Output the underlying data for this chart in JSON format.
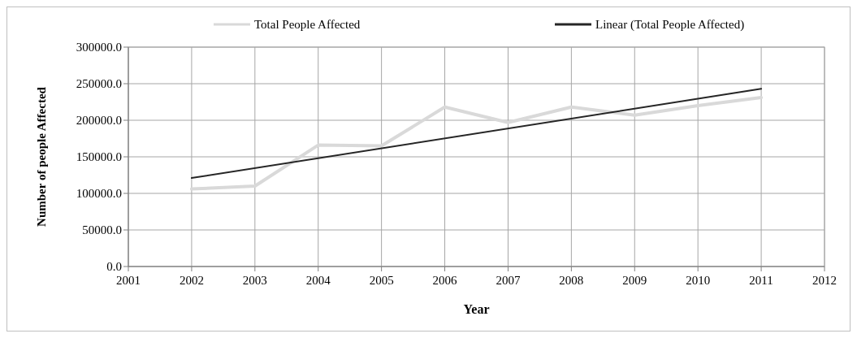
{
  "chart_data": {
    "type": "line",
    "xlabel": "Year",
    "ylabel": "Number of people Affected",
    "x": [
      2002,
      2003,
      2004,
      2005,
      2006,
      2007,
      2008,
      2009,
      2010,
      2011
    ],
    "series": [
      {
        "name": "Total People Affected",
        "color": "#d9d9d9",
        "values": [
          106000,
          110000,
          166000,
          165000,
          218000,
          197000,
          218000,
          207000,
          220000,
          231000
        ]
      },
      {
        "name": "Linear (Total People Affected)",
        "color": "#262626",
        "x": [
          2002,
          2011
        ],
        "values": [
          121000,
          243000
        ]
      }
    ],
    "xlim": [
      2001,
      2012
    ],
    "xticks": [
      2001,
      2002,
      2003,
      2004,
      2005,
      2006,
      2007,
      2008,
      2009,
      2010,
      2011,
      2012
    ],
    "ylim": [
      0,
      300000
    ],
    "yticks": [
      {
        "value": 0,
        "label": "0.0"
      },
      {
        "value": 50000,
        "label": "50000.0"
      },
      {
        "value": 100000,
        "label": "100000.0"
      },
      {
        "value": 150000,
        "label": "150000.0"
      },
      {
        "value": 200000,
        "label": "200000.0"
      },
      {
        "value": 250000,
        "label": "250000.0"
      },
      {
        "value": 300000,
        "label": "300000.0"
      }
    ],
    "grid": true,
    "legend": "top",
    "marker": "none",
    "line_style": "solid"
  }
}
